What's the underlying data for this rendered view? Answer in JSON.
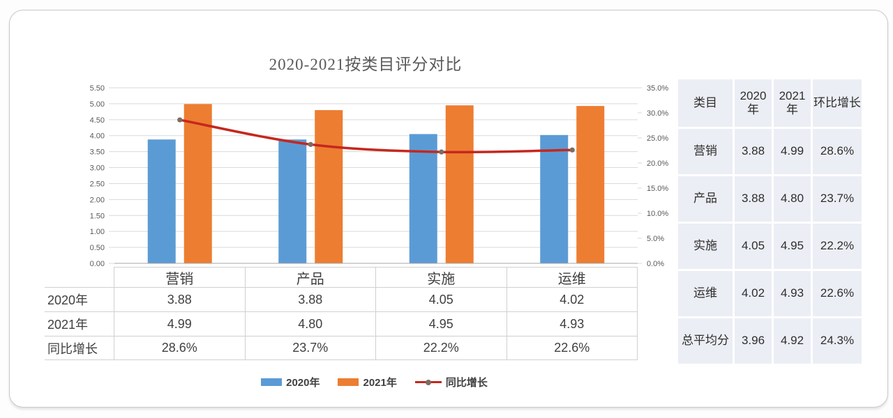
{
  "chart_data": {
    "type": "combo",
    "title": "2020-2021按类目评分对比",
    "categories": [
      "营销",
      "产品",
      "实施",
      "运维"
    ],
    "series": [
      {
        "name": "2020年",
        "type": "bar",
        "color": "#5B9BD5",
        "axis": "left",
        "values": [
          3.88,
          3.88,
          4.05,
          4.02
        ]
      },
      {
        "name": "2021年",
        "type": "bar",
        "color": "#ED7D31",
        "axis": "left",
        "values": [
          4.99,
          4.8,
          4.95,
          4.93
        ]
      },
      {
        "name": "同比增长",
        "type": "line",
        "color": "#C5271E",
        "marker_color": "#7d6c62",
        "axis": "right",
        "values": [
          28.6,
          23.7,
          22.2,
          22.6
        ],
        "unit": "%"
      }
    ],
    "left_axis": {
      "min": 0,
      "max": 5.5,
      "step": 0.5,
      "decimals": 2,
      "suffix": ""
    },
    "right_axis": {
      "min": 0,
      "max": 35,
      "step": 5,
      "decimals": 1,
      "suffix": "%"
    },
    "grid_color": "#d9d9d9",
    "axis_line_color": "#a6a6a6",
    "tick_label_color": "#595959",
    "legend_position": "bottom"
  },
  "bottom_table": {
    "col_headers": [
      "营销",
      "产品",
      "实施",
      "运维"
    ],
    "row_headers": [
      "2020年",
      "2021年",
      "同比增长"
    ],
    "rows": [
      [
        "3.88",
        "3.88",
        "4.05",
        "4.02"
      ],
      [
        "4.99",
        "4.80",
        "4.95",
        "4.93"
      ],
      [
        "28.6%",
        "23.7%",
        "22.2%",
        "22.6%"
      ]
    ]
  },
  "summary_table": {
    "headers": [
      "类目",
      "2020年",
      "2021年",
      "环比增长"
    ],
    "rows": [
      [
        "营销",
        "3.88",
        "4.99",
        "28.6%"
      ],
      [
        "产品",
        "3.88",
        "4.80",
        "23.7%"
      ],
      [
        "实施",
        "4.05",
        "4.95",
        "22.2%"
      ],
      [
        "运维",
        "4.02",
        "4.93",
        "22.6%"
      ],
      [
        "总平均分",
        "3.96",
        "4.92",
        "24.3%"
      ]
    ]
  }
}
